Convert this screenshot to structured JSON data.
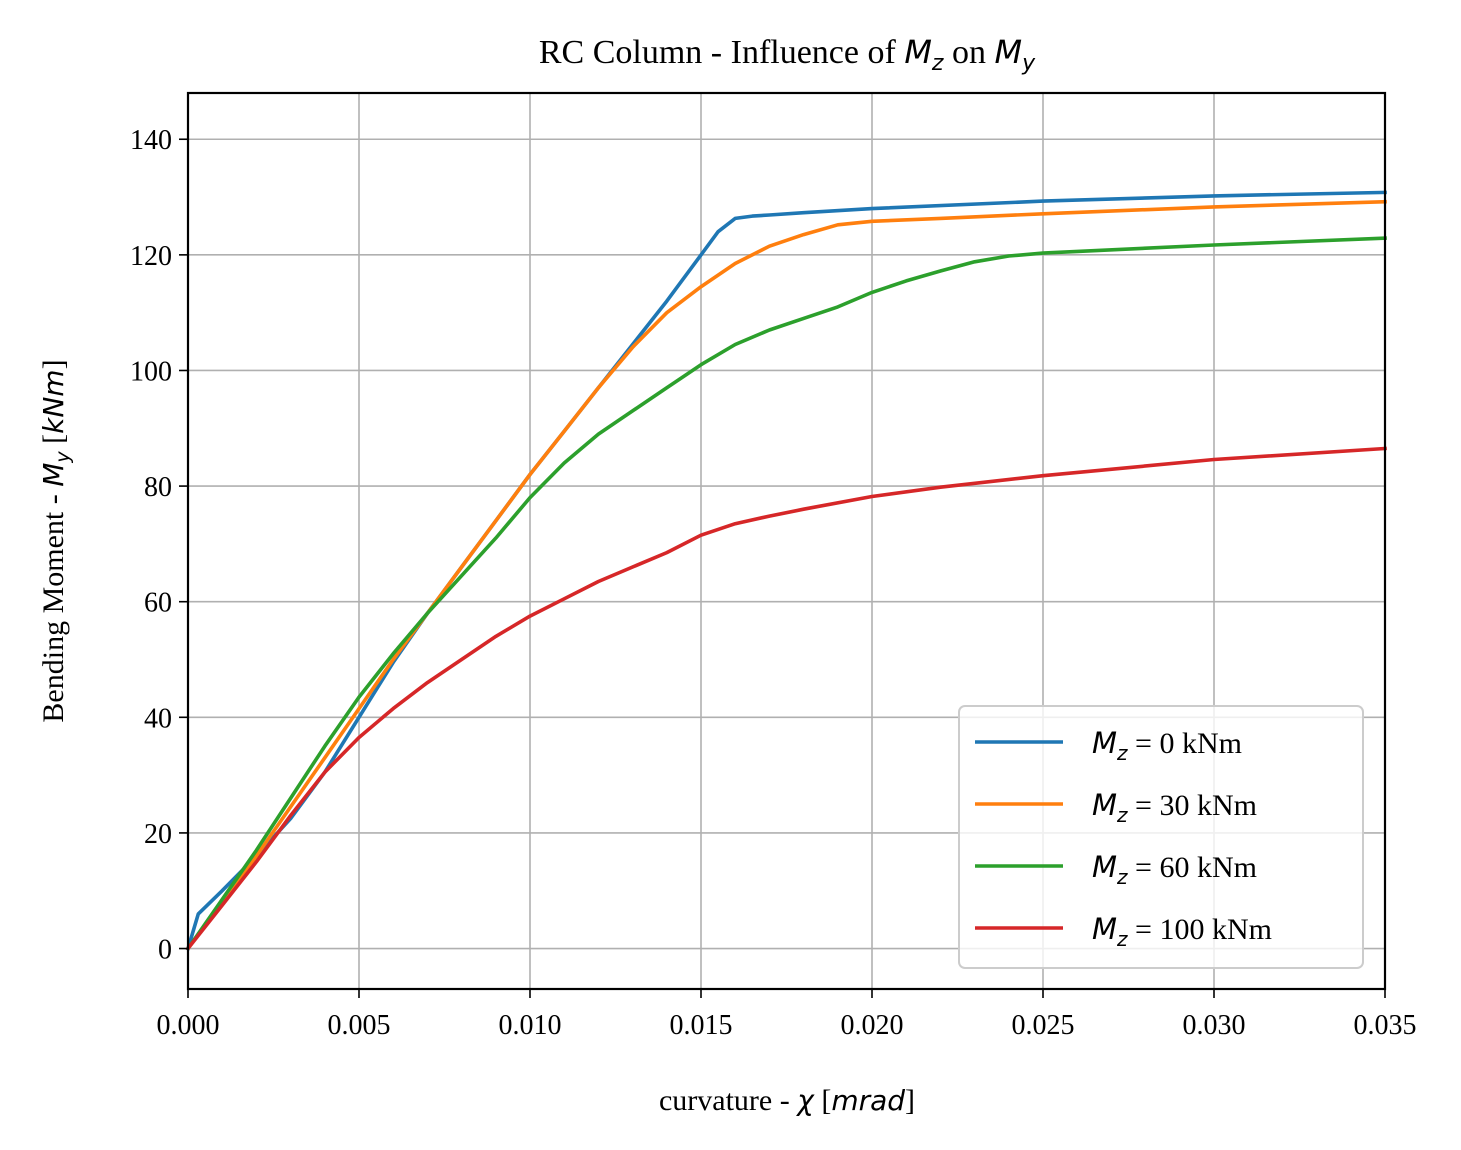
{
  "chart_data": {
    "type": "line",
    "title": {
      "prefix": "RC Column - Influence of ",
      "sym1": "M",
      "sub1": "z",
      "middle": " on ",
      "sym2": "M",
      "sub2": "y"
    },
    "xlabel": {
      "prefix": "curvature - ",
      "sym": "χ",
      "bracket_open": " [",
      "unit": "mrad",
      "bracket_close": "]"
    },
    "ylabel": {
      "prefix": "Bending Moment - ",
      "sym": "M",
      "sub": "y",
      "bracket_open": " [",
      "unit": "kNm",
      "bracket_close": "]"
    },
    "xlim": [
      0.0,
      0.035
    ],
    "ylim": [
      -7,
      148
    ],
    "xticks": [
      {
        "value": 0.0,
        "label": "0.000"
      },
      {
        "value": 0.005,
        "label": "0.005"
      },
      {
        "value": 0.01,
        "label": "0.010"
      },
      {
        "value": 0.015,
        "label": "0.015"
      },
      {
        "value": 0.02,
        "label": "0.020"
      },
      {
        "value": 0.025,
        "label": "0.025"
      },
      {
        "value": 0.03,
        "label": "0.030"
      },
      {
        "value": 0.035,
        "label": "0.035"
      }
    ],
    "yticks": [
      {
        "value": 0,
        "label": "0"
      },
      {
        "value": 20,
        "label": "20"
      },
      {
        "value": 40,
        "label": "40"
      },
      {
        "value": 60,
        "label": "60"
      },
      {
        "value": 80,
        "label": "80"
      },
      {
        "value": 100,
        "label": "100"
      },
      {
        "value": 120,
        "label": "120"
      },
      {
        "value": 140,
        "label": "140"
      }
    ],
    "grid": true,
    "legend_position": "lower-right",
    "series": [
      {
        "name": {
          "sym": "M",
          "sub": "z",
          "text": " = 0 kNm"
        },
        "color": "#1f77b4",
        "points": [
          [
            0,
            0
          ],
          [
            0.0003,
            6
          ],
          [
            0.001,
            10
          ],
          [
            0.002,
            16
          ],
          [
            0.003,
            22.5
          ],
          [
            0.004,
            30.5
          ],
          [
            0.005,
            40
          ],
          [
            0.006,
            49.5
          ],
          [
            0.007,
            58
          ],
          [
            0.008,
            66
          ],
          [
            0.009,
            74
          ],
          [
            0.01,
            82
          ],
          [
            0.011,
            89.5
          ],
          [
            0.012,
            97
          ],
          [
            0.013,
            104.5
          ],
          [
            0.014,
            112
          ],
          [
            0.015,
            120
          ],
          [
            0.0155,
            124
          ],
          [
            0.016,
            126.3
          ],
          [
            0.0165,
            126.7
          ],
          [
            0.017,
            126.9
          ],
          [
            0.018,
            127.3
          ],
          [
            0.02,
            128
          ],
          [
            0.025,
            129.3
          ],
          [
            0.03,
            130.2
          ],
          [
            0.035,
            130.8
          ]
        ]
      },
      {
        "name": {
          "sym": "M",
          "sub": "z",
          "text": " = 30 kNm"
        },
        "color": "#ff7f0e",
        "points": [
          [
            0,
            0
          ],
          [
            0.001,
            8
          ],
          [
            0.002,
            16
          ],
          [
            0.003,
            24.5
          ],
          [
            0.004,
            33
          ],
          [
            0.005,
            41.5
          ],
          [
            0.006,
            50
          ],
          [
            0.007,
            58
          ],
          [
            0.008,
            66
          ],
          [
            0.009,
            74
          ],
          [
            0.01,
            82
          ],
          [
            0.011,
            89.5
          ],
          [
            0.012,
            97
          ],
          [
            0.013,
            104
          ],
          [
            0.014,
            110
          ],
          [
            0.015,
            114.5
          ],
          [
            0.016,
            118.5
          ],
          [
            0.017,
            121.5
          ],
          [
            0.018,
            123.5
          ],
          [
            0.019,
            125.2
          ],
          [
            0.02,
            125.8
          ],
          [
            0.022,
            126.3
          ],
          [
            0.025,
            127.1
          ],
          [
            0.03,
            128.3
          ],
          [
            0.035,
            129.2
          ]
        ]
      },
      {
        "name": {
          "sym": "M",
          "sub": "z",
          "text": " = 60 kNm"
        },
        "color": "#2ca02c",
        "points": [
          [
            0,
            0
          ],
          [
            0.001,
            8.5
          ],
          [
            0.002,
            17
          ],
          [
            0.003,
            26
          ],
          [
            0.004,
            35
          ],
          [
            0.005,
            43.5
          ],
          [
            0.006,
            51
          ],
          [
            0.007,
            58
          ],
          [
            0.008,
            64.5
          ],
          [
            0.009,
            71
          ],
          [
            0.01,
            78
          ],
          [
            0.011,
            84
          ],
          [
            0.012,
            89
          ],
          [
            0.013,
            93
          ],
          [
            0.014,
            97
          ],
          [
            0.015,
            101
          ],
          [
            0.016,
            104.5
          ],
          [
            0.017,
            107
          ],
          [
            0.018,
            109
          ],
          [
            0.019,
            111
          ],
          [
            0.02,
            113.5
          ],
          [
            0.021,
            115.5
          ],
          [
            0.022,
            117.2
          ],
          [
            0.023,
            118.8
          ],
          [
            0.024,
            119.8
          ],
          [
            0.025,
            120.3
          ],
          [
            0.03,
            121.7
          ],
          [
            0.035,
            122.9
          ]
        ]
      },
      {
        "name": {
          "sym": "M",
          "sub": "z",
          "text": " = 100 kNm"
        },
        "color": "#d62728",
        "points": [
          [
            0,
            0
          ],
          [
            0.001,
            7.5
          ],
          [
            0.002,
            15
          ],
          [
            0.003,
            23
          ],
          [
            0.004,
            30.5
          ],
          [
            0.005,
            36.5
          ],
          [
            0.006,
            41.5
          ],
          [
            0.007,
            46
          ],
          [
            0.008,
            50
          ],
          [
            0.009,
            54
          ],
          [
            0.01,
            57.5
          ],
          [
            0.011,
            60.5
          ],
          [
            0.012,
            63.5
          ],
          [
            0.013,
            66
          ],
          [
            0.014,
            68.5
          ],
          [
            0.015,
            71.5
          ],
          [
            0.016,
            73.5
          ],
          [
            0.017,
            74.8
          ],
          [
            0.018,
            76
          ],
          [
            0.02,
            78.2
          ],
          [
            0.022,
            79.8
          ],
          [
            0.025,
            81.8
          ],
          [
            0.03,
            84.6
          ],
          [
            0.035,
            86.5
          ]
        ]
      }
    ]
  }
}
